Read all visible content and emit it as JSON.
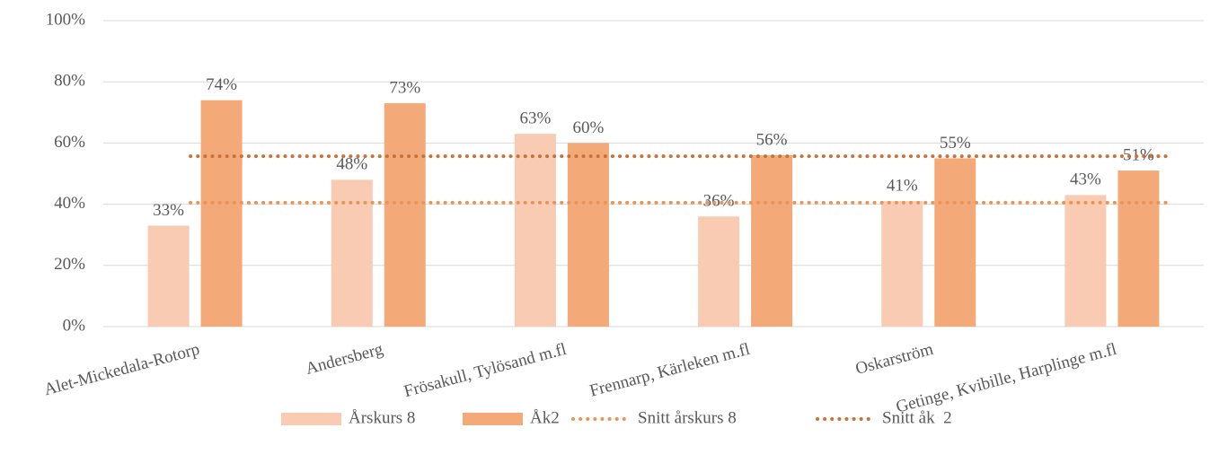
{
  "chart_data": {
    "type": "bar",
    "categories": [
      "Alet-Mickedala-Rotorp",
      "Andersberg",
      "Frösakull, Tylösand m.fl",
      "Frennarp, Kärleken m.fl",
      "Oskarström",
      "Getinge, Kvibille, Harplinge m.fl"
    ],
    "series": [
      {
        "name": "Årskurs 8",
        "color": "#f8cbb2",
        "type": "bar",
        "values": [
          33,
          48,
          63,
          36,
          41,
          43
        ],
        "value_labels": [
          "33%",
          "48%",
          "63%",
          "36%",
          "41%",
          "43%"
        ]
      },
      {
        "name": "Åk2",
        "color": "#f4a978",
        "type": "bar",
        "values": [
          74,
          73,
          60,
          56,
          55,
          51
        ],
        "value_labels": [
          "74%",
          "73%",
          "60%",
          "56%",
          "55%",
          "51%"
        ]
      },
      {
        "name": "Snitt årskurs 8",
        "color": "#e8955a",
        "type": "line",
        "dotted": true,
        "values": [
          40.5,
          40.5,
          40.5,
          40.5,
          40.5,
          40.5
        ]
      },
      {
        "name": "Snitt åk  2",
        "color": "#c8733c",
        "type": "line",
        "dotted": true,
        "values": [
          55.7,
          55.7,
          55.7,
          55.7,
          55.7,
          55.7
        ]
      }
    ],
    "ylim": [
      0,
      100
    ],
    "yticks": [
      {
        "value": 0,
        "label": "0%"
      },
      {
        "value": 20,
        "label": "20%"
      },
      {
        "value": 40,
        "label": "40%"
      },
      {
        "value": 60,
        "label": "60%"
      },
      {
        "value": 80,
        "label": "80%"
      },
      {
        "value": 100,
        "label": "100%"
      }
    ],
    "grid": true,
    "legend": "bottom"
  }
}
